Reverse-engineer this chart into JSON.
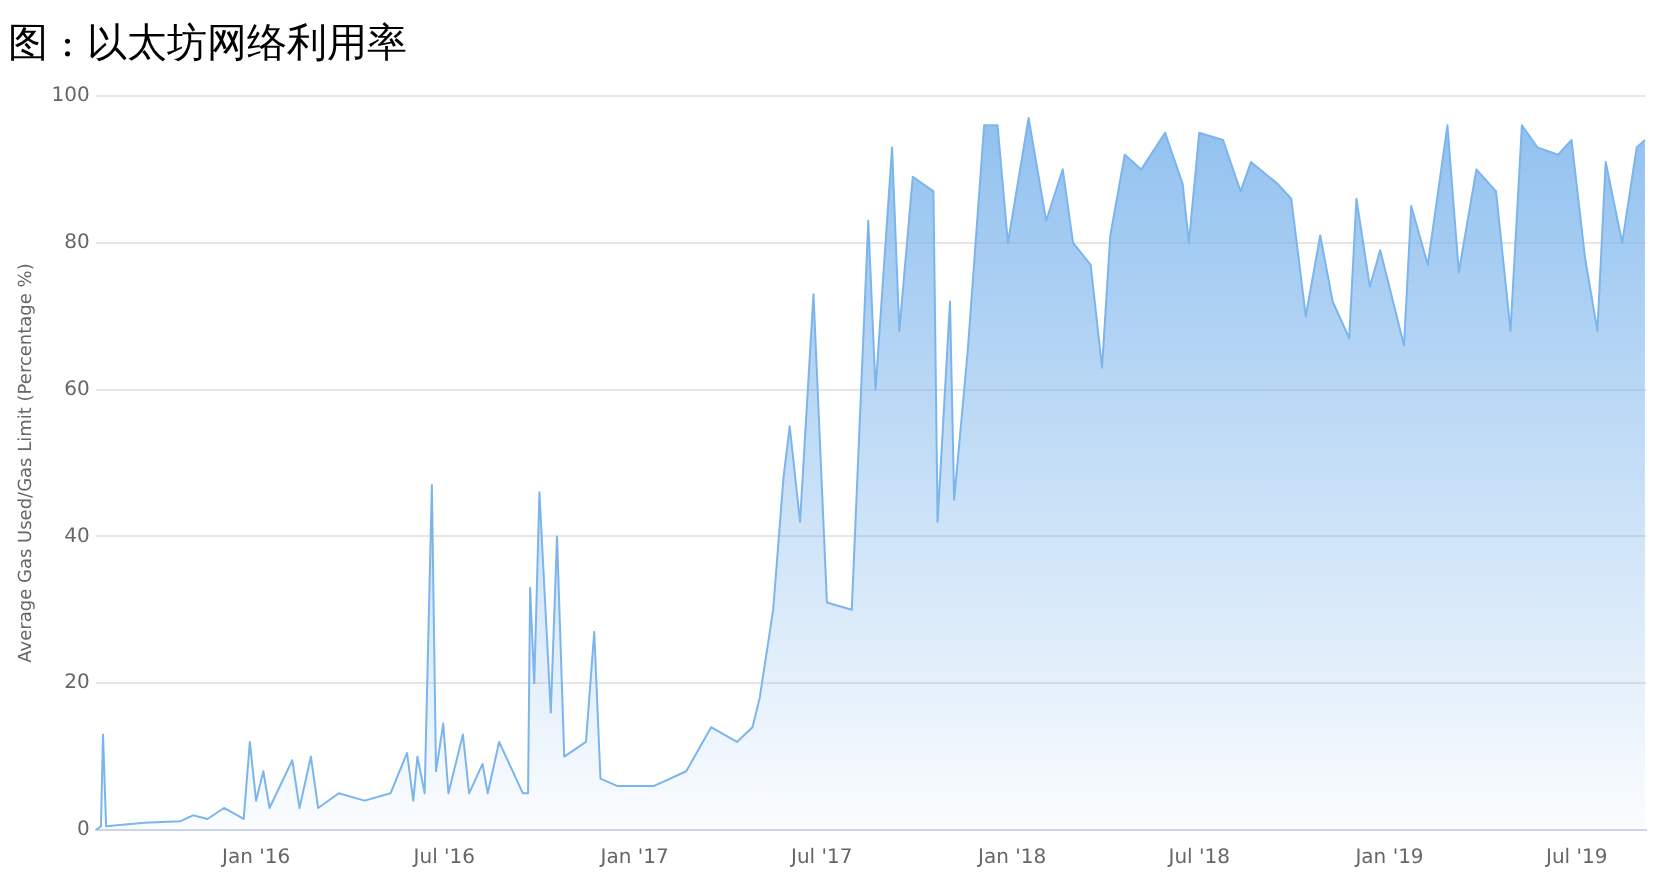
{
  "chart_data": {
    "type": "area",
    "title": "图 : 以太坊网络利用率",
    "ylabel": "Average Gas Used/Gas Limit (Percentage %)",
    "xlim": [
      "2015-07-30",
      "2019-09-06"
    ],
    "xticks": [
      {
        "value": "2016-01-01",
        "label": "Jan '16"
      },
      {
        "value": "2016-07-01",
        "label": "Jul '16"
      },
      {
        "value": "2017-01-01",
        "label": "Jan '17"
      },
      {
        "value": "2017-07-01",
        "label": "Jul '17"
      },
      {
        "value": "2018-01-01",
        "label": "Jan '18"
      },
      {
        "value": "2018-07-01",
        "label": "Jul '18"
      },
      {
        "value": "2019-01-01",
        "label": "Jan '19"
      },
      {
        "value": "2019-07-01",
        "label": "Jul '19"
      }
    ],
    "ylim": [
      0,
      100
    ],
    "yticks": [
      0,
      20,
      40,
      60,
      80,
      100
    ],
    "grid": "y",
    "legend": false,
    "series": [
      {
        "color": "#7cb5ec",
        "x": [
          "2015-07-30",
          "2015-08-04",
          "2015-08-06",
          "2015-08-09",
          "2015-09-15",
          "2015-10-20",
          "2015-11-01",
          "2015-11-15",
          "2015-12-01",
          "2015-12-20",
          "2015-12-26",
          "2016-01-01",
          "2016-01-08",
          "2016-01-14",
          "2016-02-05",
          "2016-02-12",
          "2016-02-23",
          "2016-03-01",
          "2016-03-21",
          "2016-04-15",
          "2016-05-10",
          "2016-05-26",
          "2016-06-01",
          "2016-06-05",
          "2016-06-12",
          "2016-06-19",
          "2016-06-23",
          "2016-06-30",
          "2016-07-05",
          "2016-07-19",
          "2016-07-25",
          "2016-08-07",
          "2016-08-12",
          "2016-08-23",
          "2016-09-15",
          "2016-09-20",
          "2016-09-22",
          "2016-09-26",
          "2016-10-01",
          "2016-10-12",
          "2016-10-18",
          "2016-10-25",
          "2016-11-15",
          "2016-11-23",
          "2016-11-29",
          "2016-12-15",
          "2017-01-20",
          "2017-02-20",
          "2017-03-16",
          "2017-04-10",
          "2017-04-25",
          "2017-05-02",
          "2017-05-15",
          "2017-05-25",
          "2017-05-31",
          "2017-06-10",
          "2017-06-23",
          "2017-07-06",
          "2017-07-30",
          "2017-08-15",
          "2017-08-22",
          "2017-09-07",
          "2017-09-14",
          "2017-09-27",
          "2017-10-17",
          "2017-10-21",
          "2017-11-02",
          "2017-11-06",
          "2017-11-19",
          "2017-12-05",
          "2017-12-18",
          "2017-12-28",
          "2018-01-17",
          "2018-02-03",
          "2018-02-19",
          "2018-03-01",
          "2018-03-18",
          "2018-03-29",
          "2018-04-06",
          "2018-04-20",
          "2018-05-06",
          "2018-05-29",
          "2018-06-15",
          "2018-06-21",
          "2018-07-01",
          "2018-07-24",
          "2018-08-10",
          "2018-08-20",
          "2018-09-15",
          "2018-09-28",
          "2018-10-12",
          "2018-10-26",
          "2018-11-07",
          "2018-11-23",
          "2018-11-30",
          "2018-12-13",
          "2018-12-23",
          "2019-01-15",
          "2019-01-22",
          "2019-02-07",
          "2019-02-26",
          "2019-03-09",
          "2019-03-26",
          "2019-04-14",
          "2019-04-28",
          "2019-05-09",
          "2019-05-24",
          "2019-06-13",
          "2019-06-26",
          "2019-07-09",
          "2019-07-21",
          "2019-07-29",
          "2019-08-14",
          "2019-08-28",
          "2019-09-05"
        ],
        "values": [
          0,
          0.5,
          13,
          0.5,
          1,
          1.2,
          2,
          1.5,
          3,
          1.5,
          12,
          4,
          8,
          3,
          9.5,
          3,
          10,
          3,
          5,
          4,
          5,
          10.5,
          4,
          10,
          5,
          47,
          8,
          14.5,
          5,
          13,
          5,
          9,
          5,
          12,
          5,
          5,
          33,
          20,
          46,
          16,
          40,
          10,
          12,
          27,
          7,
          6,
          6,
          8,
          14,
          12,
          14,
          18,
          30,
          48,
          55,
          42,
          73,
          31,
          30,
          83,
          60,
          93,
          68,
          89,
          87,
          42,
          72,
          45,
          65,
          96,
          96,
          80,
          97,
          83,
          90,
          80,
          77,
          63,
          81,
          92,
          90,
          95,
          88,
          80,
          95,
          94,
          87,
          91,
          88,
          86,
          70,
          81,
          72,
          67,
          86,
          74,
          79,
          66,
          85,
          77,
          96,
          76,
          90,
          87,
          68,
          96,
          93,
          92,
          94,
          78,
          68,
          91,
          80,
          93,
          94
        ]
      }
    ]
  }
}
